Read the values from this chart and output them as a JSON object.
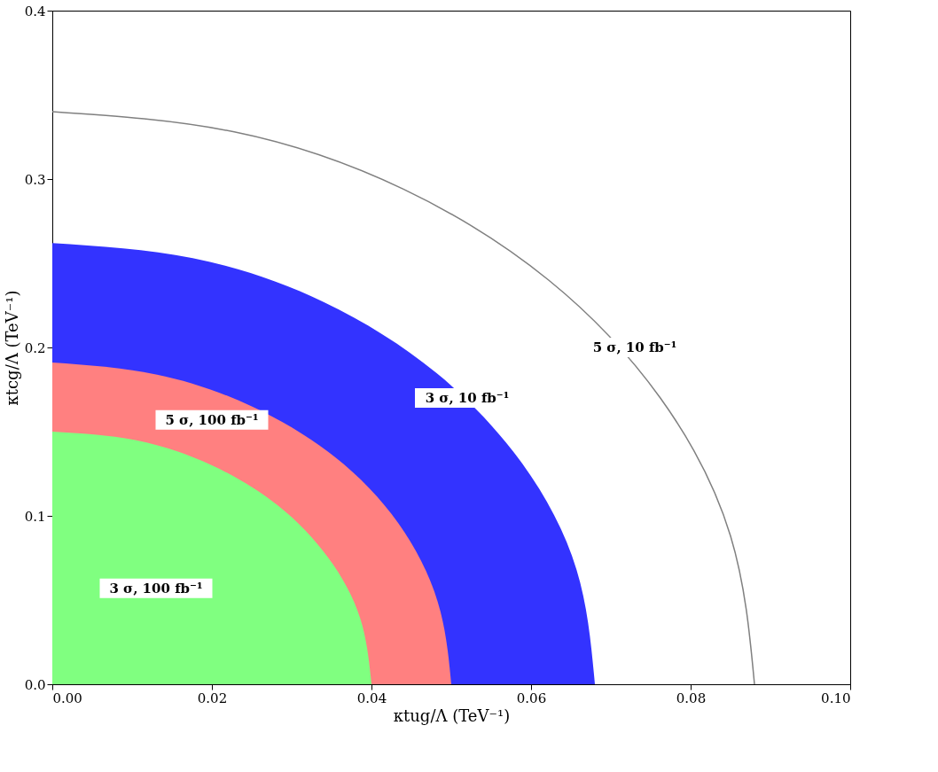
{
  "chart_data": {
    "type": "area",
    "xlabel": "κtug/Λ  (TeV⁻¹)",
    "ylabel": "κtcg/Λ  (TeV⁻¹)",
    "xlim": [
      0,
      0.1
    ],
    "ylim": [
      0,
      0.4
    ],
    "xticks": [
      {
        "value": 0,
        "label": "0.00"
      },
      {
        "value": 0.02,
        "label": "0.02"
      },
      {
        "value": 0.04,
        "label": "0.04"
      },
      {
        "value": 0.06,
        "label": "0.06"
      },
      {
        "value": 0.08,
        "label": "0.08"
      },
      {
        "value": 0.1,
        "label": "0.10"
      }
    ],
    "yticks": [
      {
        "value": 0,
        "label": "0.0"
      },
      {
        "value": 0.1,
        "label": "0.1"
      },
      {
        "value": 0.2,
        "label": "0.2"
      },
      {
        "value": 0.3,
        "label": "0.3"
      },
      {
        "value": 0.4,
        "label": "0.4"
      }
    ],
    "grid": false,
    "series": [
      {
        "color": "#3333ff",
        "x": [
          0,
          0.0176,
          0.034,
          0.0481,
          0.0589,
          0.0657,
          0.068
        ],
        "values": [
          0.262,
          0.253,
          0.227,
          0.185,
          0.131,
          0.068,
          0
        ]
      },
      {
        "color": "#ff8080",
        "x": [
          0,
          0.013,
          0.025,
          0.0354,
          0.0433,
          0.0483,
          0.05
        ],
        "values": [
          0.191,
          0.184,
          0.165,
          0.135,
          0.096,
          0.049,
          0
        ]
      },
      {
        "color": "#80ff80",
        "x": [
          0,
          0.0104,
          0.02,
          0.0283,
          0.0346,
          0.0386,
          0.04
        ],
        "values": [
          0.15,
          0.145,
          0.13,
          0.106,
          0.075,
          0.039,
          0
        ]
      },
      {
        "type": "line",
        "color": "#808080",
        "x": [
          0,
          0.0228,
          0.044,
          0.0622,
          0.0762,
          0.085,
          0.088
        ],
        "values": [
          0.34,
          0.328,
          0.294,
          0.24,
          0.17,
          0.088,
          0
        ]
      }
    ],
    "annotations": [
      "5 σ, 10 fb⁻¹",
      "3 σ, 10 fb⁻¹",
      "5 σ, 100 fb⁻¹",
      "3 σ, 100 fb⁻¹"
    ]
  }
}
